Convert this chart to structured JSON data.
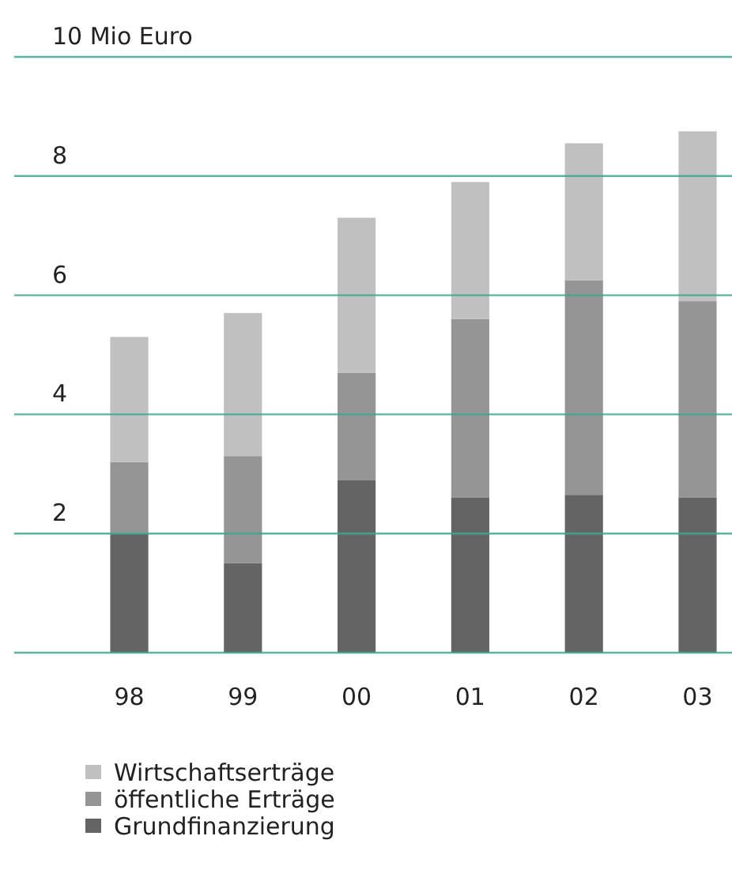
{
  "chart_data": {
    "type": "bar",
    "stacked": true,
    "categories": [
      "98",
      "99",
      "00",
      "01",
      "02",
      "03"
    ],
    "series": [
      {
        "name": "Grundfinanzierung",
        "color": "#646464",
        "values": [
          2.0,
          1.5,
          2.9,
          2.6,
          2.65,
          2.6
        ]
      },
      {
        "name": "öffentliche Erträge",
        "color": "#959595",
        "values": [
          1.2,
          1.8,
          1.8,
          3.0,
          3.6,
          3.3
        ]
      },
      {
        "name": "Wirtschaftserträge",
        "color": "#c0c0c0",
        "values": [
          2.1,
          2.4,
          2.6,
          2.3,
          2.3,
          2.85
        ]
      }
    ],
    "ylim": [
      0,
      10
    ],
    "yticks": [
      {
        "value": 0,
        "label": null
      },
      2,
      4,
      6,
      8,
      {
        "value": 10,
        "label": "10 Mio Euro"
      }
    ],
    "grid": "y",
    "legend": "bottom"
  }
}
